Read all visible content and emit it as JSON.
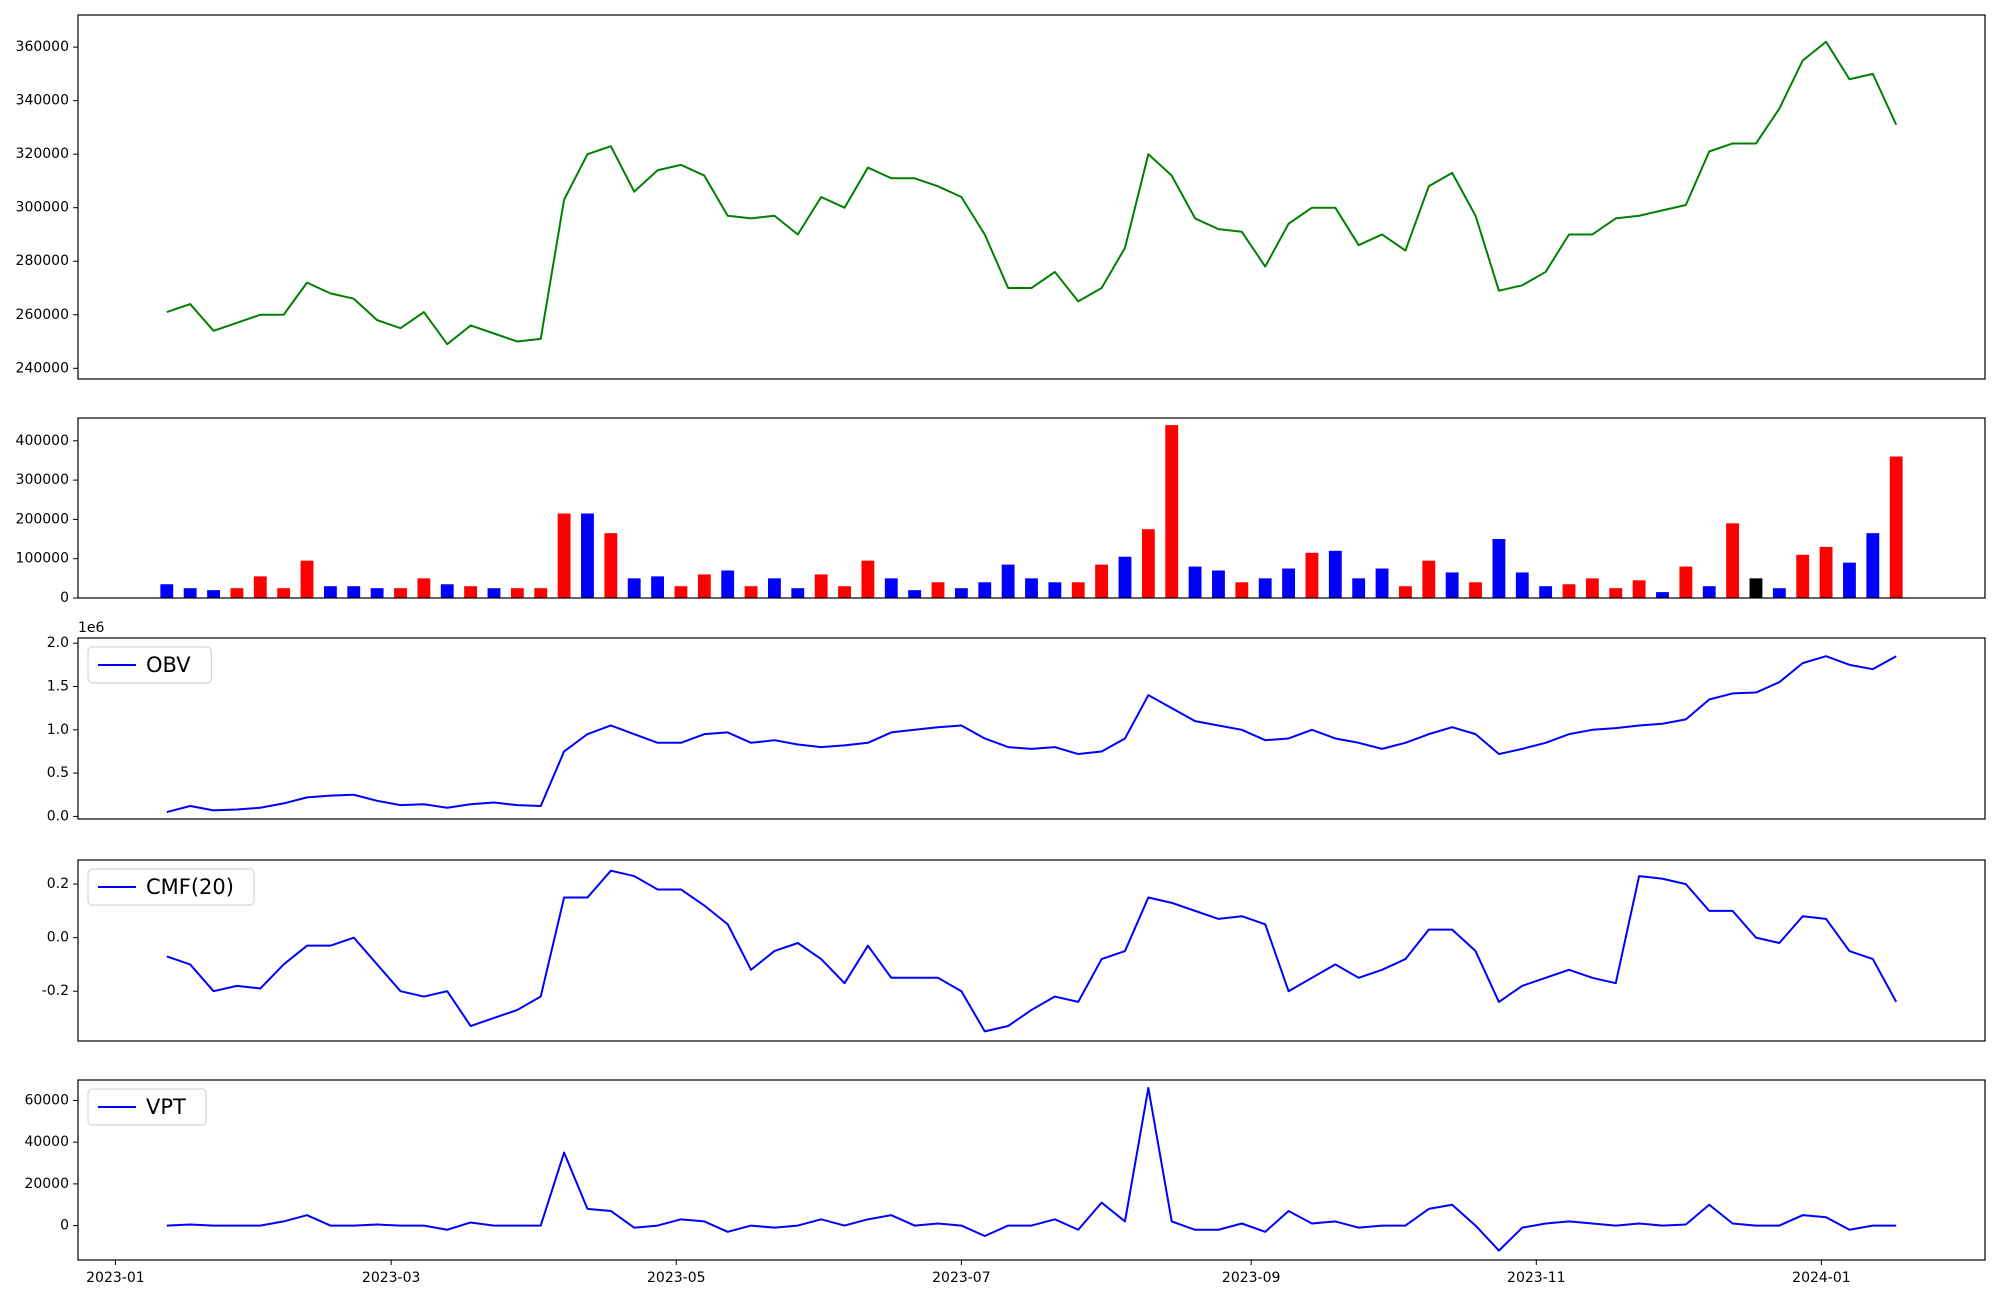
{
  "chart_data": [
    {
      "type": "line",
      "x": [
        11,
        16,
        21,
        26,
        31,
        36,
        41,
        46,
        51,
        56,
        61,
        66,
        71,
        76,
        81,
        86,
        91,
        96,
        101,
        106,
        111,
        116,
        121,
        126,
        131,
        136,
        141,
        146,
        151,
        156,
        161,
        166,
        171,
        176,
        181,
        186,
        191,
        196,
        201,
        206,
        211,
        216,
        221,
        226,
        231,
        236,
        241,
        246,
        251,
        256,
        261,
        266,
        271,
        276,
        281,
        286,
        291,
        296,
        301,
        306,
        311,
        316,
        321,
        326,
        331,
        336,
        341,
        346,
        351,
        356,
        361,
        366,
        371,
        376,
        381
      ],
      "xlim": [
        -8,
        400
      ],
      "ylim": [
        236000,
        372000
      ],
      "yticks": [
        240000,
        260000,
        280000,
        300000,
        320000,
        340000,
        360000
      ],
      "series": [
        {
          "color": "#008000",
          "values": [
            261000,
            264000,
            254000,
            257000,
            260000,
            260000,
            272000,
            268000,
            266000,
            258000,
            255000,
            261000,
            249000,
            256000,
            253000,
            250000,
            251000,
            303000,
            320000,
            323000,
            306000,
            314000,
            316000,
            312000,
            297000,
            296000,
            297000,
            290000,
            304000,
            300000,
            315000,
            311000,
            311000,
            308000,
            304000,
            290000,
            270000,
            270000,
            276000,
            265000,
            270000,
            285000,
            320000,
            312000,
            296000,
            292000,
            291000,
            278000,
            294000,
            300000,
            300000,
            286000,
            290000,
            284000,
            308000,
            313000,
            297000,
            269000,
            271000,
            276000,
            290000,
            290000,
            296000,
            297000,
            299000,
            301000,
            321000,
            324000,
            324000,
            337000,
            355000,
            362000,
            348000,
            350000,
            331000
          ]
        }
      ]
    },
    {
      "type": "bar",
      "x": [
        11,
        16,
        21,
        26,
        31,
        36,
        41,
        46,
        51,
        56,
        61,
        66,
        71,
        76,
        81,
        86,
        91,
        96,
        101,
        106,
        111,
        116,
        121,
        126,
        131,
        136,
        141,
        146,
        151,
        156,
        161,
        166,
        171,
        176,
        181,
        186,
        191,
        196,
        201,
        206,
        211,
        216,
        221,
        226,
        231,
        236,
        241,
        246,
        251,
        256,
        261,
        266,
        271,
        276,
        281,
        286,
        291,
        296,
        301,
        306,
        311,
        316,
        321,
        326,
        331,
        336,
        341,
        346,
        351,
        356,
        361,
        366,
        371,
        376,
        381
      ],
      "xlim": [
        -8,
        400
      ],
      "ylim": [
        0,
        458000
      ],
      "yticks": [
        0,
        100000,
        200000,
        300000,
        400000
      ],
      "values": [
        35000,
        25000,
        20000,
        25000,
        55000,
        25000,
        95000,
        30000,
        30000,
        25000,
        25000,
        50000,
        35000,
        30000,
        25000,
        25000,
        25000,
        215000,
        215000,
        165000,
        50000,
        55000,
        30000,
        60000,
        70000,
        30000,
        50000,
        25000,
        60000,
        30000,
        95000,
        50000,
        20000,
        40000,
        25000,
        40000,
        85000,
        50000,
        40000,
        40000,
        85000,
        105000,
        175000,
        440000,
        80000,
        70000,
        40000,
        50000,
        75000,
        115000,
        120000,
        50000,
        75000,
        30000,
        95000,
        65000,
        40000,
        150000,
        65000,
        30000,
        35000,
        50000,
        25000,
        45000,
        15000,
        80000,
        30000,
        190000,
        50000,
        25000,
        110000,
        130000,
        90000,
        165000,
        360000
      ],
      "colors": [
        "blue",
        "blue",
        "blue",
        "red",
        "red",
        "red",
        "red",
        "blue",
        "blue",
        "blue",
        "red",
        "red",
        "blue",
        "red",
        "blue",
        "red",
        "red",
        "red",
        "blue",
        "red",
        "blue",
        "blue",
        "red",
        "red",
        "blue",
        "red",
        "blue",
        "blue",
        "red",
        "red",
        "red",
        "blue",
        "blue",
        "red",
        "blue",
        "blue",
        "blue",
        "blue",
        "blue",
        "red",
        "red",
        "blue",
        "red",
        "red",
        "blue",
        "blue",
        "red",
        "blue",
        "blue",
        "red",
        "blue",
        "blue",
        "blue",
        "red",
        "red",
        "blue",
        "red",
        "blue",
        "blue",
        "blue",
        "red",
        "red",
        "red",
        "red",
        "blue",
        "red",
        "blue",
        "red",
        "black",
        "blue",
        "red",
        "red",
        "blue",
        "blue",
        "red"
      ]
    },
    {
      "type": "line",
      "x": [
        11,
        16,
        21,
        26,
        31,
        36,
        41,
        46,
        51,
        56,
        61,
        66,
        71,
        76,
        81,
        86,
        91,
        96,
        101,
        106,
        111,
        116,
        121,
        126,
        131,
        136,
        141,
        146,
        151,
        156,
        161,
        166,
        171,
        176,
        181,
        186,
        191,
        196,
        201,
        206,
        211,
        216,
        221,
        226,
        231,
        236,
        241,
        246,
        251,
        256,
        261,
        266,
        271,
        276,
        281,
        286,
        291,
        296,
        301,
        306,
        311,
        316,
        321,
        326,
        331,
        336,
        341,
        346,
        351,
        356,
        361,
        366,
        371,
        376,
        381
      ],
      "xlim": [
        -8,
        400
      ],
      "ylim": [
        -0.03,
        2.06
      ],
      "offset_text": "1e6",
      "yticks": [
        {
          "value": 0,
          "label": "0.0"
        },
        0.5,
        {
          "value": 1,
          "label": "1.0"
        },
        1.5,
        {
          "value": 2,
          "label": "2.0"
        }
      ],
      "legend": "upper left",
      "series": [
        {
          "name": "OBV",
          "color": "blue",
          "values": [
            0.05,
            0.12,
            0.07,
            0.08,
            0.1,
            0.15,
            0.22,
            0.24,
            0.25,
            0.18,
            0.13,
            0.14,
            0.1,
            0.14,
            0.16,
            0.13,
            0.12,
            0.75,
            0.95,
            1.05,
            0.95,
            0.85,
            0.85,
            0.95,
            0.97,
            0.85,
            0.88,
            0.83,
            0.8,
            0.82,
            0.85,
            0.97,
            1.0,
            1.03,
            1.05,
            0.9,
            0.8,
            0.78,
            0.8,
            0.72,
            0.75,
            0.9,
            1.4,
            1.25,
            1.1,
            1.05,
            1.0,
            0.88,
            0.9,
            1.0,
            0.9,
            0.85,
            0.78,
            0.85,
            0.95,
            1.03,
            0.95,
            0.72,
            0.78,
            0.85,
            0.95,
            1.0,
            1.02,
            1.05,
            1.07,
            1.12,
            1.35,
            1.42,
            1.43,
            1.55,
            1.77,
            1.85,
            1.75,
            1.7,
            1.85
          ]
        }
      ]
    },
    {
      "type": "line",
      "x": [
        11,
        16,
        21,
        26,
        31,
        36,
        41,
        46,
        51,
        56,
        61,
        66,
        71,
        76,
        81,
        86,
        91,
        96,
        101,
        106,
        111,
        116,
        121,
        126,
        131,
        136,
        141,
        146,
        151,
        156,
        161,
        166,
        171,
        176,
        181,
        186,
        191,
        196,
        201,
        206,
        211,
        216,
        221,
        226,
        231,
        236,
        241,
        246,
        251,
        256,
        261,
        266,
        271,
        276,
        281,
        286,
        291,
        296,
        301,
        306,
        311,
        316,
        321,
        326,
        331,
        336,
        341,
        346,
        351,
        356,
        361,
        366,
        371,
        376,
        381
      ],
      "xlim": [
        -8,
        400
      ],
      "ylim": [
        -0.386,
        0.29
      ],
      "yticks": [
        -0.2,
        {
          "value": 0,
          "label": "0.0"
        },
        0.2
      ],
      "legend": "upper left",
      "series": [
        {
          "name": "CMF(20)",
          "color": "blue",
          "values": [
            -0.07,
            -0.1,
            -0.2,
            -0.18,
            -0.19,
            -0.1,
            -0.03,
            -0.03,
            0,
            -0.1,
            -0.2,
            -0.22,
            -0.2,
            -0.33,
            -0.3,
            -0.27,
            -0.22,
            0.15,
            0.15,
            0.25,
            0.23,
            0.18,
            0.18,
            0.12,
            0.05,
            -0.12,
            -0.05,
            -0.02,
            -0.08,
            -0.17,
            -0.03,
            -0.15,
            -0.15,
            -0.15,
            -0.2,
            -0.35,
            -0.33,
            -0.27,
            -0.22,
            -0.24,
            -0.08,
            -0.05,
            0.15,
            0.13,
            0.1,
            0.07,
            0.08,
            0.05,
            -0.2,
            -0.15,
            -0.1,
            -0.15,
            -0.12,
            -0.08,
            0.03,
            0.03,
            -0.05,
            -0.24,
            -0.18,
            -0.15,
            -0.12,
            -0.15,
            -0.17,
            0.23,
            0.22,
            0.2,
            0.1,
            0.1,
            0,
            -0.02,
            0.08,
            0.07,
            -0.05,
            -0.08,
            -0.24
          ]
        }
      ]
    },
    {
      "type": "line",
      "x": [
        11,
        16,
        21,
        26,
        31,
        36,
        41,
        46,
        51,
        56,
        61,
        66,
        71,
        76,
        81,
        86,
        91,
        96,
        101,
        106,
        111,
        116,
        121,
        126,
        131,
        136,
        141,
        146,
        151,
        156,
        161,
        166,
        171,
        176,
        181,
        186,
        191,
        196,
        201,
        206,
        211,
        216,
        221,
        226,
        231,
        236,
        241,
        246,
        251,
        256,
        261,
        266,
        271,
        276,
        281,
        286,
        291,
        296,
        301,
        306,
        311,
        316,
        321,
        326,
        331,
        336,
        341,
        346,
        351,
        356,
        361,
        366,
        371,
        376,
        381
      ],
      "xlim": [
        -8,
        400
      ],
      "ylim": [
        -16500,
        69800
      ],
      "yticks": [
        0,
        20000,
        40000,
        60000
      ],
      "xticks": [
        {
          "value": 0,
          "label": "2023-01"
        },
        {
          "value": 59,
          "label": "2023-03"
        },
        {
          "value": 120,
          "label": "2023-05"
        },
        {
          "value": 181,
          "label": "2023-07"
        },
        {
          "value": 243,
          "label": "2023-09"
        },
        {
          "value": 304,
          "label": "2023-11"
        },
        {
          "value": 365,
          "label": "2024-01"
        }
      ],
      "legend": "upper left",
      "series": [
        {
          "name": "VPT",
          "color": "blue",
          "values": [
            0,
            500,
            0,
            0,
            0,
            2000,
            5000,
            0,
            0,
            500,
            0,
            0,
            -2000,
            1500,
            0,
            0,
            0,
            35000,
            8000,
            7000,
            -1000,
            0,
            3000,
            2000,
            -3000,
            0,
            -1000,
            0,
            3000,
            0,
            3000,
            5000,
            0,
            1000,
            0,
            -5000,
            0,
            0,
            3000,
            -2000,
            11000,
            2000,
            66000,
            2000,
            -2000,
            -2000,
            1000,
            -3000,
            7000,
            1000,
            2000,
            -1000,
            0,
            0,
            8000,
            10000,
            0,
            -12000,
            -1000,
            1000,
            2000,
            1000,
            0,
            1000,
            0,
            500,
            10000,
            1000,
            0,
            0,
            5000,
            4000,
            -2000,
            0,
            0
          ]
        }
      ]
    }
  ]
}
